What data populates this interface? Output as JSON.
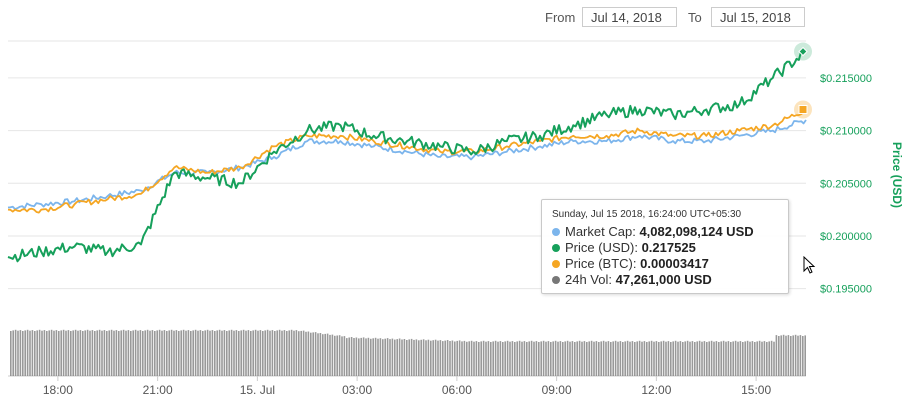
{
  "range": {
    "from_label": "From",
    "from_value": "Jul 14, 2018",
    "to_label": "To",
    "to_value": "Jul 15, 2018"
  },
  "tooltip": {
    "title": "Sunday, Jul 15 2018, 16:24:00 UTC+05:30",
    "rows": [
      {
        "label": "Market Cap:",
        "value": "4,082,098,124 USD",
        "color": "#7cb5ec"
      },
      {
        "label": "Price (USD):",
        "value": "0.217525",
        "color": "#16a05b"
      },
      {
        "label": "Price (BTC):",
        "value": "0.00003417",
        "color": "#f5a623"
      },
      {
        "label": "24h Vol:",
        "value": "47,261,000 USD",
        "color": "#777777"
      }
    ]
  },
  "chart_data": {
    "type": "line",
    "ylabel": "Price (USD)",
    "y_tick_labels": [
      "$0.215000",
      "$0.210000",
      "$0.205000",
      "$0.200000",
      "$0.195000"
    ],
    "y_ticks": [
      0.215,
      0.21,
      0.205,
      0.2,
      0.195
    ],
    "ylim": [
      0.1925,
      0.2185
    ],
    "x_tick_labels": [
      "18:00",
      "21:00",
      "15. Jul",
      "03:00",
      "06:00",
      "09:00",
      "12:00",
      "15:00"
    ],
    "x_ticks": [
      1.5,
      4.5,
      7.5,
      10.5,
      13.5,
      16.5,
      19.5,
      22.5
    ],
    "xlim": [
      0,
      24
    ],
    "grid": true,
    "colors": {
      "market_cap": "#7cb5ec",
      "price_usd": "#16a05b",
      "price_btc": "#f5a623",
      "volume": "#808080"
    },
    "series": [
      {
        "key": "market_cap",
        "x": [
          0,
          1,
          2,
          3,
          4,
          5,
          6,
          7,
          8,
          9,
          10,
          11,
          12,
          13,
          14,
          15,
          16,
          17,
          18,
          19,
          20,
          21,
          22,
          23,
          24
        ],
        "values": [
          0.2027,
          0.203,
          0.2033,
          0.2038,
          0.2043,
          0.206,
          0.206,
          0.2065,
          0.2075,
          0.209,
          0.209,
          0.2085,
          0.208,
          0.2075,
          0.2075,
          0.208,
          0.2085,
          0.209,
          0.209,
          0.2095,
          0.209,
          0.209,
          0.2095,
          0.21,
          0.211
        ]
      },
      {
        "key": "price_usd",
        "x": [
          0,
          1,
          2,
          3,
          4,
          5,
          6,
          7,
          8,
          9,
          10,
          11,
          12,
          13,
          14,
          15,
          16,
          17,
          18,
          19,
          20,
          21,
          22,
          23,
          24
        ],
        "values": [
          0.198,
          0.1985,
          0.199,
          0.1985,
          0.1992,
          0.206,
          0.2055,
          0.205,
          0.208,
          0.21,
          0.2105,
          0.2095,
          0.209,
          0.2085,
          0.208,
          0.209,
          0.2095,
          0.2105,
          0.2115,
          0.212,
          0.2115,
          0.212,
          0.2125,
          0.215,
          0.2175
        ]
      },
      {
        "key": "price_btc",
        "x": [
          0,
          1,
          2,
          3,
          4,
          5,
          6,
          7,
          8,
          9,
          10,
          11,
          12,
          13,
          14,
          15,
          16,
          17,
          18,
          19,
          20,
          21,
          22,
          23,
          24
        ],
        "values": [
          0.2025,
          0.2025,
          0.203,
          0.2035,
          0.204,
          0.2065,
          0.206,
          0.2065,
          0.2085,
          0.2095,
          0.2095,
          0.209,
          0.2085,
          0.208,
          0.208,
          0.2085,
          0.209,
          0.2095,
          0.2095,
          0.21,
          0.2095,
          0.2095,
          0.21,
          0.2105,
          0.212
        ]
      }
    ]
  }
}
